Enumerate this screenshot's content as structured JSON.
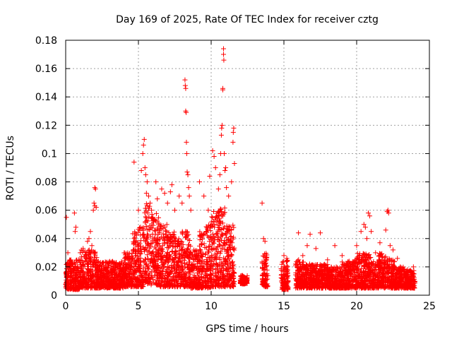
{
  "chart_data": {
    "type": "scatter",
    "title": "Day 169 of 2025, Rate Of TEC Index for receiver cztg",
    "xlabel": "GPS time / hours",
    "ylabel": "ROTI / TECUs",
    "xlim": [
      0,
      25
    ],
    "ylim": [
      0,
      0.18
    ],
    "xticks": [
      "0",
      "5",
      "10",
      "15",
      "20",
      "25"
    ],
    "yticks": [
      "0",
      "0.02",
      "0.04",
      "0.06",
      "0.08",
      "0.1",
      "0.12",
      "0.14",
      "0.16",
      "0.18"
    ],
    "grid": true,
    "marker": "+",
    "color": "#ff0000",
    "series": [
      {
        "points": [
          [
            0.05,
            0.055
          ],
          [
            0.1,
            0.022
          ],
          [
            0.15,
            0.03
          ],
          [
            0.3,
            0.013
          ],
          [
            0.6,
            0.058
          ],
          [
            0.65,
            0.045
          ],
          [
            0.7,
            0.048
          ],
          [
            0.9,
            0.025
          ],
          [
            1.0,
            0.03
          ],
          [
            1.2,
            0.033
          ],
          [
            1.4,
            0.028
          ],
          [
            1.5,
            0.038
          ],
          [
            1.6,
            0.04
          ],
          [
            1.7,
            0.045
          ],
          [
            1.8,
            0.035
          ],
          [
            1.9,
            0.06
          ],
          [
            1.95,
            0.065
          ],
          [
            2.0,
            0.063
          ],
          [
            2.0,
            0.076
          ],
          [
            2.05,
            0.075
          ],
          [
            2.1,
            0.062
          ],
          [
            4.7,
            0.094
          ],
          [
            5.0,
            0.06
          ],
          [
            5.2,
            0.088
          ],
          [
            5.3,
            0.1
          ],
          [
            5.35,
            0.106
          ],
          [
            5.4,
            0.11
          ],
          [
            5.45,
            0.09
          ],
          [
            5.5,
            0.085
          ],
          [
            5.55,
            0.072
          ],
          [
            5.6,
            0.08
          ],
          [
            5.7,
            0.07
          ],
          [
            5.8,
            0.065
          ],
          [
            5.9,
            0.06
          ],
          [
            6.0,
            0.055
          ],
          [
            6.2,
            0.08
          ],
          [
            6.3,
            0.068
          ],
          [
            6.6,
            0.075
          ],
          [
            6.8,
            0.072
          ],
          [
            7.0,
            0.065
          ],
          [
            7.2,
            0.073
          ],
          [
            7.3,
            0.078
          ],
          [
            7.5,
            0.06
          ],
          [
            7.8,
            0.07
          ],
          [
            8.0,
            0.065
          ],
          [
            8.2,
            0.152
          ],
          [
            8.22,
            0.148
          ],
          [
            8.25,
            0.146
          ],
          [
            8.25,
            0.13
          ],
          [
            8.28,
            0.129
          ],
          [
            8.3,
            0.108
          ],
          [
            8.32,
            0.1
          ],
          [
            8.35,
            0.087
          ],
          [
            8.4,
            0.085
          ],
          [
            8.45,
            0.076
          ],
          [
            8.5,
            0.07
          ],
          [
            8.6,
            0.06
          ],
          [
            9.2,
            0.08
          ],
          [
            9.5,
            0.07
          ],
          [
            9.8,
            0.06
          ],
          [
            9.9,
            0.084
          ],
          [
            10.1,
            0.102
          ],
          [
            10.2,
            0.098
          ],
          [
            10.3,
            0.09
          ],
          [
            10.5,
            0.075
          ],
          [
            10.6,
            0.085
          ],
          [
            10.65,
            0.1
          ],
          [
            10.7,
            0.113
          ],
          [
            10.72,
            0.118
          ],
          [
            10.75,
            0.12
          ],
          [
            10.8,
            0.146
          ],
          [
            10.8,
            0.145
          ],
          [
            10.85,
            0.174
          ],
          [
            10.85,
            0.17
          ],
          [
            10.87,
            0.166
          ],
          [
            10.9,
            0.1
          ],
          [
            10.95,
            0.088
          ],
          [
            11.0,
            0.09
          ],
          [
            11.05,
            0.076
          ],
          [
            11.2,
            0.07
          ],
          [
            11.4,
            0.08
          ],
          [
            11.5,
            0.108
          ],
          [
            11.52,
            0.115
          ],
          [
            11.55,
            0.118
          ],
          [
            11.6,
            0.093
          ],
          [
            13.5,
            0.065
          ],
          [
            13.6,
            0.04
          ],
          [
            13.7,
            0.038
          ],
          [
            13.8,
            0.025
          ],
          [
            15.0,
            0.028
          ],
          [
            15.2,
            0.026
          ],
          [
            15.8,
            0.022
          ],
          [
            16.0,
            0.044
          ],
          [
            16.3,
            0.028
          ],
          [
            16.6,
            0.035
          ],
          [
            16.8,
            0.043
          ],
          [
            17.2,
            0.033
          ],
          [
            17.5,
            0.044
          ],
          [
            18.0,
            0.025
          ],
          [
            18.5,
            0.035
          ],
          [
            19.0,
            0.028
          ],
          [
            19.5,
            0.022
          ],
          [
            20.0,
            0.035
          ],
          [
            20.3,
            0.045
          ],
          [
            20.5,
            0.05
          ],
          [
            20.6,
            0.048
          ],
          [
            20.7,
            0.04
          ],
          [
            20.8,
            0.058
          ],
          [
            20.9,
            0.056
          ],
          [
            21.0,
            0.045
          ],
          [
            21.3,
            0.03
          ],
          [
            21.6,
            0.037
          ],
          [
            21.8,
            0.025
          ],
          [
            22.0,
            0.046
          ],
          [
            22.1,
            0.059
          ],
          [
            22.15,
            0.06
          ],
          [
            22.2,
            0.058
          ],
          [
            22.3,
            0.035
          ],
          [
            22.5,
            0.032
          ],
          [
            22.8,
            0.026
          ],
          [
            23.0,
            0.02
          ],
          [
            23.5,
            0.018
          ],
          [
            23.9,
            0.02
          ]
        ],
        "bands": [
          [
            0.0,
            0.1,
            0.005,
            0.022
          ],
          [
            0.1,
            1.0,
            0.004,
            0.025
          ],
          [
            1.0,
            2.2,
            0.005,
            0.032
          ],
          [
            2.2,
            4.0,
            0.005,
            0.024
          ],
          [
            4.0,
            4.6,
            0.006,
            0.03
          ],
          [
            4.6,
            5.0,
            0.006,
            0.045
          ],
          [
            5.0,
            5.4,
            0.006,
            0.05
          ],
          [
            5.4,
            5.8,
            0.008,
            0.065
          ],
          [
            5.8,
            6.4,
            0.007,
            0.058
          ],
          [
            6.4,
            7.0,
            0.006,
            0.05
          ],
          [
            7.0,
            7.5,
            0.006,
            0.045
          ],
          [
            7.5,
            8.0,
            0.006,
            0.04
          ],
          [
            8.0,
            8.6,
            0.006,
            0.045
          ],
          [
            8.6,
            9.2,
            0.005,
            0.032
          ],
          [
            9.2,
            9.6,
            0.005,
            0.045
          ],
          [
            9.6,
            10.0,
            0.005,
            0.05
          ],
          [
            10.0,
            10.5,
            0.006,
            0.06
          ],
          [
            10.5,
            11.0,
            0.006,
            0.062
          ],
          [
            11.0,
            11.6,
            0.006,
            0.05
          ],
          [
            12.0,
            12.5,
            0.008,
            0.014
          ],
          [
            13.5,
            13.9,
            0.006,
            0.03
          ],
          [
            14.8,
            15.3,
            0.004,
            0.025
          ],
          [
            15.8,
            16.5,
            0.005,
            0.025
          ],
          [
            16.5,
            18.0,
            0.005,
            0.022
          ],
          [
            18.0,
            19.0,
            0.005,
            0.02
          ],
          [
            19.0,
            20.0,
            0.005,
            0.024
          ],
          [
            20.0,
            21.0,
            0.005,
            0.03
          ],
          [
            21.0,
            21.5,
            0.005,
            0.025
          ],
          [
            21.5,
            22.3,
            0.005,
            0.03
          ],
          [
            22.3,
            22.7,
            0.005,
            0.025
          ],
          [
            22.7,
            23.3,
            0.005,
            0.02
          ],
          [
            23.3,
            24.0,
            0.005,
            0.018
          ]
        ]
      }
    ]
  }
}
